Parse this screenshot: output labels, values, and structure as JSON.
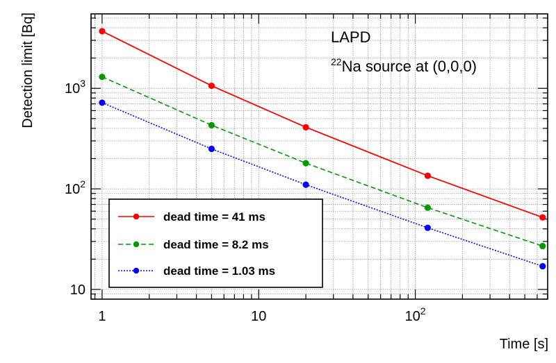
{
  "chart_data": {
    "type": "line",
    "title": "",
    "xlabel": "Time [s]",
    "ylabel": "Detection limit [Bq]",
    "xscale": "log",
    "yscale": "log",
    "xlim": [
      0.85,
      700
    ],
    "ylim": [
      8,
      5500
    ],
    "grid": true,
    "legend_position": "bottom-left",
    "annotations": [
      {
        "text": "LAPD"
      },
      {
        "sup": "22",
        "text": "Na source at (0,0,0)"
      }
    ],
    "x_ticks": [
      {
        "value": 1,
        "label": "1"
      },
      {
        "value": 10,
        "label": "10"
      },
      {
        "value": 100,
        "label": "10",
        "sup": "2"
      }
    ],
    "y_ticks": [
      {
        "value": 10,
        "label": "10"
      },
      {
        "value": 100,
        "label": "10",
        "sup": "2"
      },
      {
        "value": 1000,
        "label": "10",
        "sup": "3"
      }
    ],
    "x": [
      1,
      5,
      20,
      120,
      650
    ],
    "series": [
      {
        "name": "dead time = 41 ms",
        "color": "#ff0000",
        "dash": "solid",
        "values": [
          3700,
          1060,
          410,
          135,
          52
        ]
      },
      {
        "name": "dead time = 8.2 ms",
        "color": "#009900",
        "dash": "dashed",
        "values": [
          1300,
          430,
          180,
          65,
          27
        ]
      },
      {
        "name": "dead time = 1.03 ms",
        "color": "#0000ff",
        "dash": "dotted",
        "values": [
          720,
          250,
          110,
          41,
          17
        ]
      }
    ]
  }
}
